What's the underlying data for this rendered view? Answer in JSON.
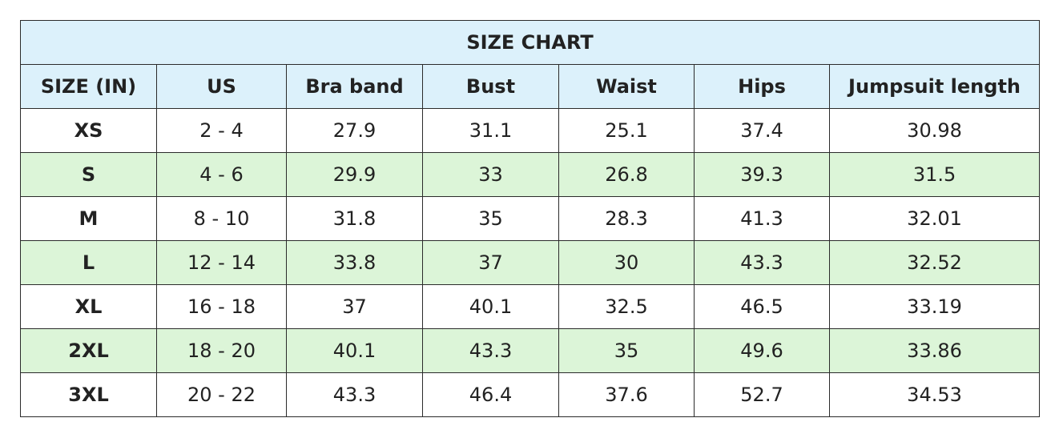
{
  "table": {
    "title": "SIZE CHART",
    "header": [
      "SIZE (IN)",
      "US",
      "Bra band",
      "Bust",
      "Waist",
      "Hips",
      "Jumpsuit length"
    ],
    "rows": [
      [
        "XS",
        "2 - 4",
        "27.9",
        "31.1",
        "25.1",
        "37.4",
        "30.98"
      ],
      [
        "S",
        "4 - 6",
        "29.9",
        "33",
        "26.8",
        "39.3",
        "31.5"
      ],
      [
        "M",
        "8 - 10",
        "31.8",
        "35",
        "28.3",
        "41.3",
        "32.01"
      ],
      [
        "L",
        "12 - 14",
        "33.8",
        "37",
        "30",
        "43.3",
        "32.52"
      ],
      [
        "XL",
        "16 - 18",
        "37",
        "40.1",
        "32.5",
        "46.5",
        "33.19"
      ],
      [
        "2XL",
        "18 - 20",
        "40.1",
        "43.3",
        "35",
        "49.6",
        "33.86"
      ],
      [
        "3XL",
        "20 - 22",
        "43.3",
        "46.4",
        "37.6",
        "52.7",
        "34.53"
      ]
    ]
  }
}
